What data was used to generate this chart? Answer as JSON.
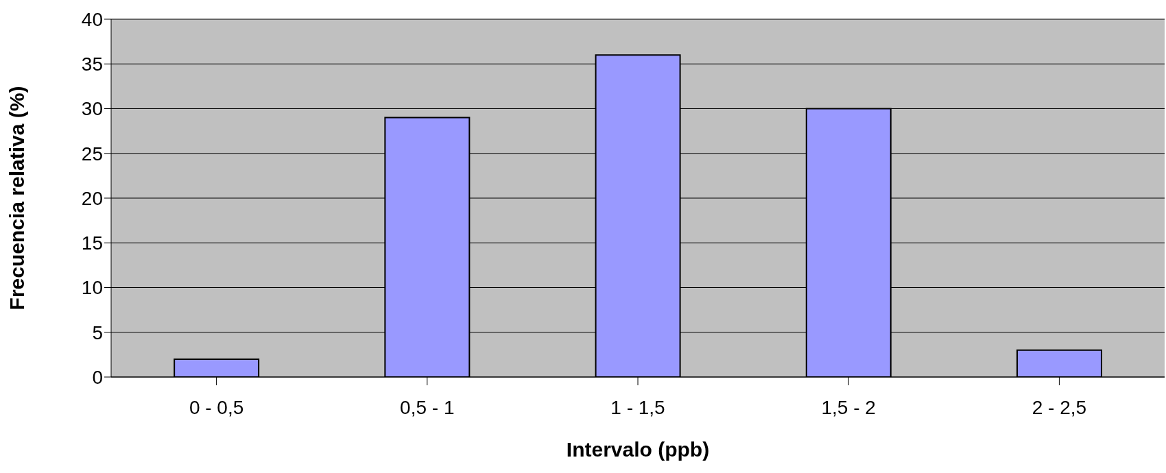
{
  "chart_data": {
    "type": "bar",
    "xlabel": "Intervalo (ppb)",
    "ylabel": "Frecuencia relativa (%)",
    "categories": [
      "0 - 0,5",
      "0,5 - 1",
      "1 - 1,5",
      "1,5 - 2",
      "2 - 2,5"
    ],
    "values": [
      2,
      29,
      36,
      30,
      3
    ],
    "color": "#9999ff",
    "ylim": [
      0,
      40
    ],
    "yticks": [
      0,
      5,
      10,
      15,
      20,
      25,
      30,
      35,
      40
    ],
    "grid": "y"
  }
}
